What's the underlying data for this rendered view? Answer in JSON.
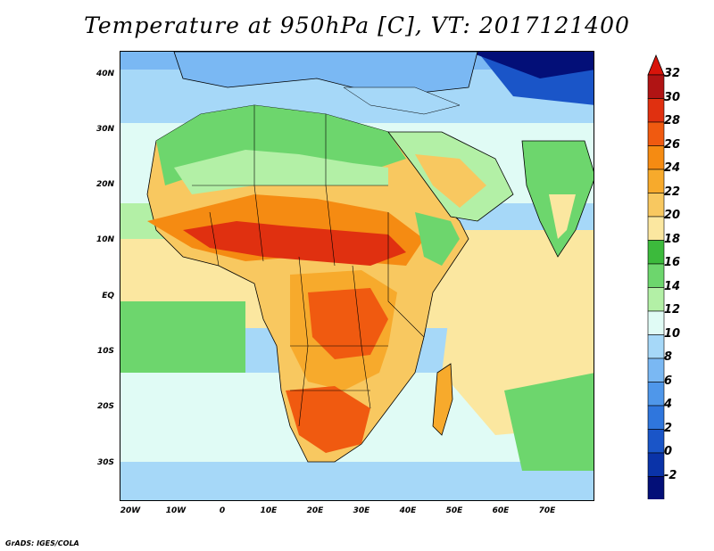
{
  "title": "Temperature at 950hPa [C], VT: 2017121400",
  "credit": "GrADS: IGES/COLA",
  "lat_labels": [
    "40N",
    "30N",
    "20N",
    "10N",
    "EQ",
    "10S",
    "20S",
    "30S"
  ],
  "lon_labels": [
    "20W",
    "10W",
    "0",
    "10E",
    "20E",
    "30E",
    "40E",
    "50E",
    "60E",
    "70E"
  ],
  "colorbar": {
    "labels": [
      "32",
      "30",
      "28",
      "26",
      "24",
      "22",
      "20",
      "18",
      "16",
      "14",
      "12",
      "10",
      "8",
      "6",
      "4",
      "2",
      "0",
      "-2"
    ],
    "colors": [
      "#b01414",
      "#e03010",
      "#f05a10",
      "#f58b12",
      "#f7aa2c",
      "#f8c860",
      "#fbe7a0",
      "#3cba3c",
      "#6dd66d",
      "#b3f0a6",
      "#e0fbf5",
      "#a6d8f8",
      "#7ab8f3",
      "#4f97ea",
      "#2f76dd",
      "#1a55c8",
      "#0a33a8",
      "#030f78"
    ],
    "top_arrow_color": "#d8140a",
    "bottom_arrow_color": "#d8d0f8"
  },
  "map_colors": {
    "ocean_cool": "#a6d8f8",
    "ocean_mid": "#e0fbf5",
    "ocean_warm": "#fbe7a0",
    "land_green": "#6dd66d",
    "land_hot": "#f05a10",
    "land_very_hot": "#e03010",
    "land_warm": "#f7aa2c",
    "north_cold": "#4f97ea",
    "border": "#000000"
  }
}
